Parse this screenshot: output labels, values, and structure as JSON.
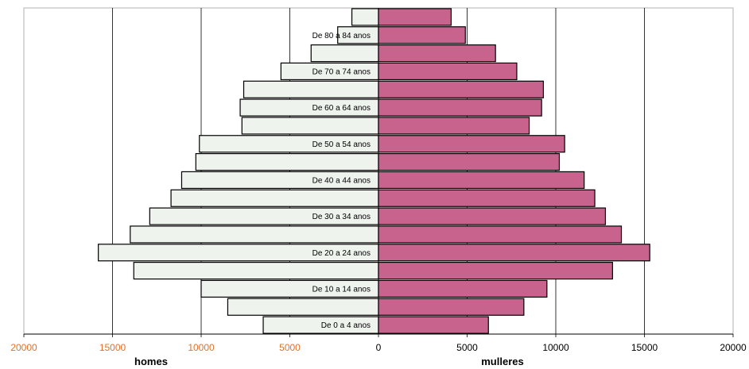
{
  "chart_data": {
    "type": "bar",
    "orientation": "horizontal",
    "stacked_mirror": true,
    "xlim": [
      -20000,
      20000
    ],
    "x_ticks": [
      20000,
      15000,
      10000,
      5000,
      0,
      5000,
      10000,
      15000,
      20000
    ],
    "xlabel_left": "homes",
    "xlabel_right": "mulleres",
    "grid": true,
    "categories": [
      "De 0 a 4 anos",
      "",
      "De 10 a 14 anos",
      "",
      "De 20 a 24 anos",
      "",
      "De 30 a 34 anos",
      "",
      "De 40 a 44 anos",
      "",
      "De 50 a 54 anos",
      "",
      "De 60 a 64 anos",
      "",
      "De 70 a 74 anos",
      "",
      "De 80 a 84 anos",
      ""
    ],
    "series": [
      {
        "name": "homes",
        "values": [
          6500,
          8500,
          10000,
          13800,
          15800,
          14000,
          12900,
          11700,
          11100,
          10300,
          10100,
          7700,
          7800,
          7600,
          5500,
          3800,
          2300,
          1500
        ]
      },
      {
        "name": "mulleres",
        "values": [
          6200,
          8200,
          9500,
          13200,
          15300,
          13700,
          12800,
          12200,
          11600,
          10200,
          10500,
          8500,
          9200,
          9300,
          7800,
          6600,
          4900,
          4100
        ]
      }
    ],
    "colors": {
      "homes": "#eef3ee",
      "mulleres": "#c8638e",
      "left_tick_color": "#e0712a",
      "right_tick_color": "#000000"
    }
  }
}
